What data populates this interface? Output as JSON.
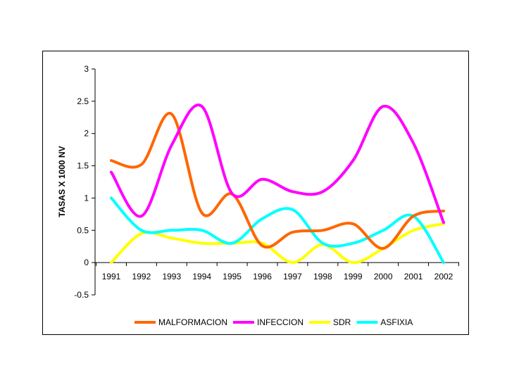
{
  "chart_data": {
    "type": "line",
    "title": "",
    "xlabel": "",
    "ylabel": "TASAS X 1000 NV",
    "x": [
      "1991",
      "1992",
      "1993",
      "1994",
      "1995",
      "1996",
      "1997",
      "1998",
      "1999",
      "2000",
      "2001",
      "2002"
    ],
    "ylim": [
      -0.5,
      3
    ],
    "yticks": [
      "-0.5",
      "0",
      "0.5",
      "1",
      "1.5",
      "2",
      "2.5",
      "3"
    ],
    "ytick_values": [
      -0.5,
      0,
      0.5,
      1,
      1.5,
      2,
      2.5,
      3
    ],
    "grid": false,
    "legend_position": "bottom",
    "series": [
      {
        "name": "MALFORMACION",
        "color": "#ff6600",
        "values": [
          1.58,
          1.52,
          2.3,
          0.77,
          1.06,
          0.26,
          0.47,
          0.5,
          0.6,
          0.22,
          0.72,
          0.8
        ]
      },
      {
        "name": "INFECCION",
        "color": "#ff00ff",
        "values": [
          1.4,
          0.72,
          1.82,
          2.42,
          1.07,
          1.29,
          1.1,
          1.1,
          1.58,
          2.42,
          1.85,
          0.62
        ]
      },
      {
        "name": "SDR",
        "color": "#ffff00",
        "values": [
          0.0,
          0.45,
          0.38,
          0.3,
          0.3,
          0.3,
          0.0,
          0.28,
          0.0,
          0.22,
          0.5,
          0.6
        ]
      },
      {
        "name": "ASFIXIA",
        "color": "#00ffff",
        "values": [
          1.0,
          0.5,
          0.5,
          0.5,
          0.3,
          0.68,
          0.82,
          0.3,
          0.3,
          0.5,
          0.72,
          0.0
        ]
      }
    ]
  }
}
